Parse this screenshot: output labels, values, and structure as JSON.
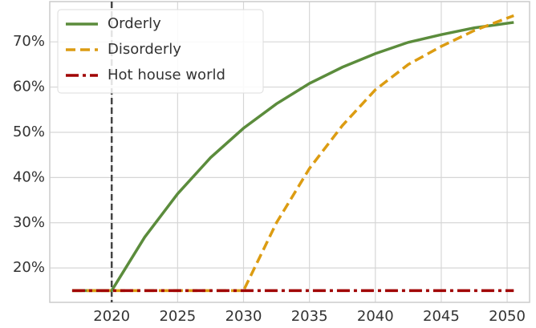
{
  "chart_data": {
    "type": "line",
    "x": [
      2017,
      2020,
      2022.5,
      2025,
      2027.5,
      2030,
      2032.5,
      2035,
      2037.5,
      2040,
      2042.5,
      2045,
      2047.5,
      2050.5
    ],
    "series": [
      {
        "name": "Orderly",
        "color": "#5b8c3c",
        "dash": "solid",
        "values": [
          15,
          15,
          26.8,
          36.4,
          44.4,
          50.9,
          56.3,
          60.8,
          64.4,
          67.4,
          69.9,
          71.6,
          73.1,
          74.3
        ]
      },
      {
        "name": "Disorderly",
        "color": "#dc9c12",
        "dash": "dashed",
        "values": [
          15,
          15,
          15,
          15,
          15,
          15,
          30,
          42,
          51.5,
          59.4,
          65,
          69,
          72.5,
          75.8
        ]
      },
      {
        "name": "Hot house world",
        "color": "#a00000",
        "dash": "dashdot",
        "values": [
          15,
          15,
          15,
          15,
          15,
          15,
          15,
          15,
          15,
          15,
          15,
          15,
          15,
          15
        ]
      }
    ],
    "xlim": [
      2015.3,
      2051.7
    ],
    "xticks": [
      2020,
      2025,
      2030,
      2035,
      2040,
      2045,
      2050
    ],
    "ylim": [
      12.4,
      78.9
    ],
    "yticks": [
      {
        "value": 20,
        "label": "20%"
      },
      {
        "value": 30,
        "label": "30%"
      },
      {
        "value": 40,
        "label": "40%"
      },
      {
        "value": 50,
        "label": "50%"
      },
      {
        "value": 60,
        "label": "60%"
      },
      {
        "value": 70,
        "label": "70%"
      }
    ],
    "vline": 2020,
    "grid": true,
    "legend": "upper-left"
  }
}
